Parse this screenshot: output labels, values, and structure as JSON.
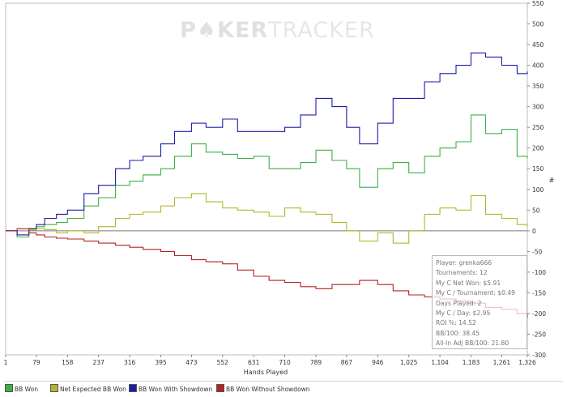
{
  "watermark": {
    "left": "P",
    "chip": "♠",
    "mid": "KER",
    "right": "TRACKER"
  },
  "stats": [
    "Player: grenka666",
    "Tournaments: 12",
    "My C Net Won: $5.91",
    "My C / Tournament: $0.49",
    "Days Played: 2",
    "My C / Day: $2.95",
    "ROI %: 14.52",
    "BB/100: 38.45",
    "All-In Adj BB/100: 21.80"
  ],
  "colors": {
    "bb_won": "#3cb043",
    "net_expected": "#b5b52c",
    "with_showdown": "#1c1ca6",
    "without_showdown": "#b22222",
    "zero_line": "#777777",
    "grid": "#dddddd"
  },
  "chart_data": {
    "type": "line",
    "title": "",
    "xlabel": "Hands Played",
    "ylabel": "#",
    "xlim": [
      1,
      1326
    ],
    "ylim": [
      -300,
      550
    ],
    "x_ticks": [
      "1",
      "79",
      "158",
      "237",
      "316",
      "395",
      "473",
      "552",
      "631",
      "710",
      "789",
      "867",
      "946",
      "1,025",
      "1,104",
      "1,183",
      "1,261",
      "1,326"
    ],
    "y_ticks": [
      "550",
      "500",
      "450",
      "400",
      "350",
      "300",
      "250",
      "200",
      "150",
      "100",
      "50",
      "0",
      "-50",
      "-100",
      "-150",
      "-200",
      "-250",
      "-300"
    ],
    "x": [
      1,
      30,
      60,
      79,
      100,
      130,
      158,
      200,
      237,
      280,
      316,
      350,
      395,
      430,
      473,
      510,
      552,
      590,
      631,
      670,
      710,
      750,
      789,
      830,
      867,
      900,
      946,
      985,
      1025,
      1065,
      1104,
      1145,
      1183,
      1220,
      1261,
      1300,
      1326
    ],
    "series": [
      {
        "name": "BB Won",
        "values": [
          0,
          -15,
          5,
          10,
          15,
          20,
          30,
          60,
          80,
          110,
          120,
          135,
          150,
          180,
          210,
          190,
          185,
          175,
          180,
          150,
          150,
          165,
          195,
          170,
          150,
          105,
          150,
          165,
          140,
          180,
          200,
          215,
          280,
          235,
          245,
          180,
          175
        ]
      },
      {
        "name": "Net Expected BB Won",
        "values": [
          0,
          -10,
          2,
          5,
          3,
          -5,
          0,
          -5,
          10,
          30,
          40,
          45,
          60,
          80,
          90,
          70,
          55,
          50,
          45,
          35,
          55,
          45,
          40,
          20,
          0,
          -25,
          -5,
          -30,
          0,
          40,
          55,
          50,
          85,
          40,
          30,
          15,
          10
        ]
      },
      {
        "name": "BB Won With Showdown",
        "values": [
          0,
          -10,
          5,
          15,
          30,
          40,
          50,
          90,
          110,
          150,
          170,
          180,
          210,
          240,
          260,
          250,
          270,
          240,
          240,
          240,
          250,
          280,
          320,
          300,
          250,
          210,
          260,
          320,
          320,
          360,
          380,
          400,
          430,
          420,
          400,
          380,
          385
        ]
      },
      {
        "name": "BB Won Without Showdown",
        "values": [
          0,
          5,
          -5,
          -10,
          -15,
          -18,
          -20,
          -25,
          -30,
          -35,
          -40,
          -45,
          -50,
          -60,
          -70,
          -75,
          -80,
          -95,
          -110,
          -120,
          -125,
          -135,
          -140,
          -130,
          -130,
          -120,
          -130,
          -145,
          -155,
          -160,
          -165,
          -170,
          -175,
          -185,
          -190,
          -200,
          -210
        ]
      }
    ]
  },
  "legend": [
    {
      "label": "BB Won",
      "series": "bb_won"
    },
    {
      "label": "Net Expected BB Won",
      "series": "net_expected"
    },
    {
      "label": "BB Won With Showdown",
      "series": "with_showdown"
    },
    {
      "label": "BB Won Without Showdown",
      "series": "without_showdown"
    }
  ]
}
